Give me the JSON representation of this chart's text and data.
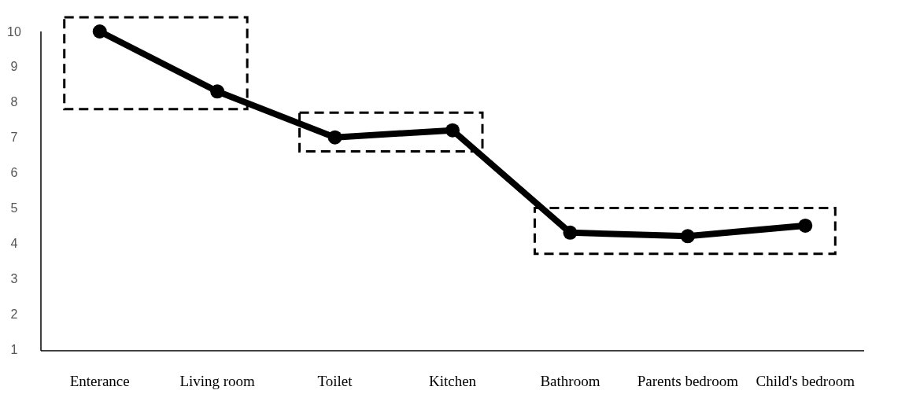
{
  "chart_data": {
    "type": "line",
    "categories": [
      "Enterance",
      "Living room",
      "Toilet",
      "Kitchen",
      "Bathroom",
      "Parents bedroom",
      "Child's bedroom"
    ],
    "series": [
      {
        "color": "#000000",
        "values": [
          10.0,
          8.3,
          7.0,
          7.2,
          4.3,
          4.2,
          4.5
        ]
      }
    ],
    "ylim": [
      1,
      10
    ],
    "yticks": [
      1,
      2,
      3,
      4,
      5,
      6,
      7,
      8,
      9,
      10
    ],
    "marker": "circle",
    "line_style": "solid"
  }
}
